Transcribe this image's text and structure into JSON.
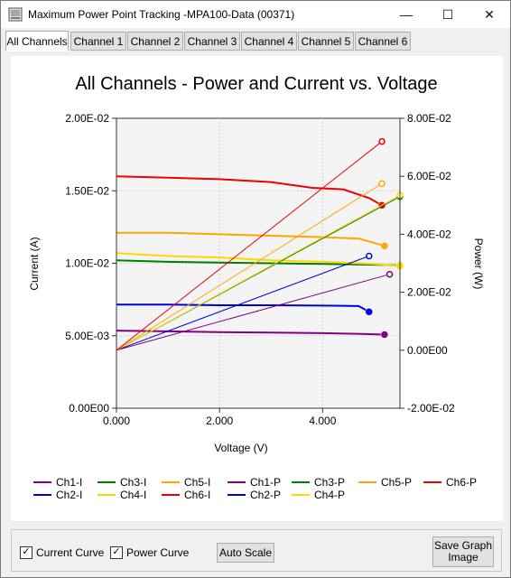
{
  "window": {
    "title": "Maximum Power Point Tracking -MPA100-Data (00371)",
    "min_glyph": "—",
    "max_glyph": "☐",
    "close_glyph": "✕"
  },
  "tabs": [
    "All Channels",
    "Channel 1",
    "Channel 2",
    "Channel 3",
    "Channel 4",
    "Channel 5",
    "Channel 6"
  ],
  "active_tab": "All Channels",
  "chart_data": {
    "type": "line",
    "title": "All Channels - Power and Current vs. Voltage",
    "xlabel": "Voltage (V)",
    "ylabel": "Current (A)",
    "y2label": "Power (W)",
    "xlim": [
      0,
      5.5
    ],
    "ylim": [
      0,
      0.02
    ],
    "y2lim": [
      -0.02,
      0.08
    ],
    "x_ticks": [
      "0.000",
      "2.000",
      "4.000"
    ],
    "y_ticks": [
      "0.00E00",
      "5.00E-03",
      "1.00E-02",
      "1.50E-02",
      "2.00E-02"
    ],
    "y2_ticks": [
      "-2.00E-02",
      "0.00E00",
      "2.00E-02",
      "4.00E-02",
      "6.00E-02",
      "8.00E-02"
    ],
    "grid": true,
    "legend": "bottom",
    "current_series": [
      {
        "name": "Ch1-I",
        "color": "#800080",
        "x": [
          0,
          1,
          2,
          3,
          4,
          4.7,
          5.2
        ],
        "y": [
          0.00535,
          0.0053,
          0.00525,
          0.00522,
          0.00518,
          0.00513,
          0.00508
        ]
      },
      {
        "name": "Ch2-I",
        "color": "#0000dd",
        "x": [
          0,
          1,
          2,
          3,
          4,
          4.7,
          4.9
        ],
        "y": [
          0.00715,
          0.00715,
          0.0071,
          0.0071,
          0.00708,
          0.00705,
          0.00665
        ]
      },
      {
        "name": "Ch3-I",
        "color": "#008000",
        "x": [
          0,
          1,
          2,
          3,
          4,
          5.0,
          5.5
        ],
        "y": [
          0.0102,
          0.0101,
          0.01005,
          0.01,
          0.00995,
          0.0099,
          0.00985
        ]
      },
      {
        "name": "Ch4-I",
        "color": "#ffd700",
        "x": [
          0,
          1,
          2,
          3,
          4,
          5.0,
          5.5
        ],
        "y": [
          0.0107,
          0.0105,
          0.0104,
          0.0102,
          0.0101,
          0.00995,
          0.0098
        ]
      },
      {
        "name": "Ch5-I",
        "color": "#ffa500",
        "x": [
          0,
          1,
          2,
          3,
          4,
          4.7,
          5.2
        ],
        "y": [
          0.0121,
          0.0121,
          0.012,
          0.0119,
          0.0118,
          0.0117,
          0.0112
        ]
      },
      {
        "name": "Ch6-I",
        "color": "#ee0000",
        "x": [
          0,
          1,
          2,
          3,
          3.8,
          4.4,
          4.9,
          5.15
        ],
        "y": [
          0.016,
          0.0159,
          0.0158,
          0.0156,
          0.0152,
          0.0151,
          0.0145,
          0.014
        ]
      }
    ],
    "power_series": [
      {
        "name": "Ch1-P",
        "color": "#800080",
        "x": [
          0,
          5.3
        ],
        "y": [
          0,
          0.0262
        ]
      },
      {
        "name": "Ch2-P",
        "color": "#0000dd",
        "x": [
          0,
          4.9
        ],
        "y": [
          0,
          0.0325
        ]
      },
      {
        "name": "Ch3-P",
        "color": "#008000",
        "x": [
          0,
          5.5
        ],
        "y": [
          0,
          0.053
        ]
      },
      {
        "name": "Ch4-P",
        "color": "#ffd700",
        "x": [
          0,
          5.5
        ],
        "y": [
          0,
          0.0535
        ]
      },
      {
        "name": "Ch5-P",
        "color": "#ffa500",
        "x": [
          0,
          5.15
        ],
        "y": [
          0,
          0.0575
        ]
      },
      {
        "name": "Ch6-P",
        "color": "#ee0000",
        "x": [
          0,
          5.15
        ],
        "y": [
          0,
          0.072
        ]
      }
    ],
    "legend_order": [
      "Ch1-I",
      "Ch3-I",
      "Ch5-I",
      "Ch1-P",
      "Ch3-P",
      "Ch5-P",
      "Ch6-P",
      "Ch2-I",
      "Ch4-I",
      "Ch6-I",
      "Ch2-P",
      "Ch4-P"
    ],
    "legend_colors": [
      "#800080",
      "#008000",
      "#ffa500",
      "#800080",
      "#008000",
      "#ffa500",
      "#ee0000",
      "#0000dd",
      "#ffd700",
      "#ee0000",
      "#0000dd",
      "#ffd700"
    ]
  },
  "bottom": {
    "current_curve_label": "Current Curve",
    "current_curve_checked": true,
    "power_curve_label": "Power Curve",
    "power_curve_checked": true,
    "auto_scale_label": "Auto Scale",
    "save_graph_label_1": "Save Graph",
    "save_graph_label_2": "Image"
  }
}
